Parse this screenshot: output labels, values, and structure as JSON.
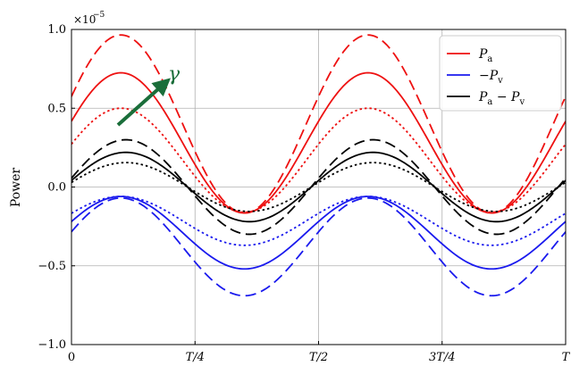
{
  "chart_data": {
    "type": "line",
    "title": "",
    "xlabel": "",
    "ylabel": "Power",
    "y_multiplier": "×10",
    "y_multiplier_exponent": "−5",
    "xlim": [
      0,
      1
    ],
    "ylim": [
      -1.0,
      1.0
    ],
    "xtick_values": [
      0,
      0.25,
      0.5,
      0.75,
      1.0
    ],
    "xtick_labels": [
      "0",
      "T/4",
      "T/2",
      "3T/4",
      "T"
    ],
    "ytick_values": [
      -1.0,
      -0.5,
      0.0,
      0.5,
      1.0
    ],
    "ytick_labels": [
      "−1.0",
      "−0.5",
      "0.0",
      "0.5",
      "1.0"
    ],
    "grid": true,
    "legend": {
      "placement": "top-right",
      "entries": [
        {
          "label": "P",
          "sub": "a",
          "prefix": "",
          "color": "#ee1111"
        },
        {
          "label": "P",
          "sub": "v",
          "prefix": "−",
          "color": "#1a1aee"
        },
        {
          "label": "P",
          "sub": "a",
          "mid": " − ",
          "label2": "P",
          "sub2": "v",
          "prefix": "",
          "color": "#000000"
        }
      ]
    },
    "annotation": {
      "text": "γ",
      "color": "#1a6e3a"
    },
    "series": [
      {
        "name": "Pa dashed",
        "color": "#ee1111",
        "dash": "dashed",
        "mean": 0.4,
        "amp": 0.565,
        "phase": 0.1
      },
      {
        "name": "Pa solid",
        "color": "#ee1111",
        "dash": "solid",
        "mean": 0.28,
        "amp": 0.445,
        "phase": 0.1
      },
      {
        "name": "Pa dotted",
        "color": "#ee1111",
        "dash": "dotted",
        "mean": 0.17,
        "amp": 0.33,
        "phase": 0.1
      },
      {
        "name": "-Pv dashed",
        "color": "#1a1aee",
        "dash": "dashed",
        "mean": -0.38,
        "amp": 0.31,
        "phase": 0.1
      },
      {
        "name": "-Pv solid",
        "color": "#1a1aee",
        "dash": "solid",
        "mean": -0.29,
        "amp": 0.23,
        "phase": 0.1
      },
      {
        "name": "-Pv dotted",
        "color": "#1a1aee",
        "dash": "dotted",
        "mean": -0.215,
        "amp": 0.155,
        "phase": 0.1
      },
      {
        "name": "Pa-Pv dashed",
        "color": "#000000",
        "dash": "dashed",
        "mean": 0.0,
        "amp": 0.3,
        "phase": 0.11
      },
      {
        "name": "Pa-Pv solid",
        "color": "#000000",
        "dash": "solid",
        "mean": 0.0,
        "amp": 0.22,
        "phase": 0.11
      },
      {
        "name": "Pa-Pv dotted",
        "color": "#000000",
        "dash": "dotted",
        "mean": 0.0,
        "amp": 0.155,
        "phase": 0.11
      }
    ]
  }
}
